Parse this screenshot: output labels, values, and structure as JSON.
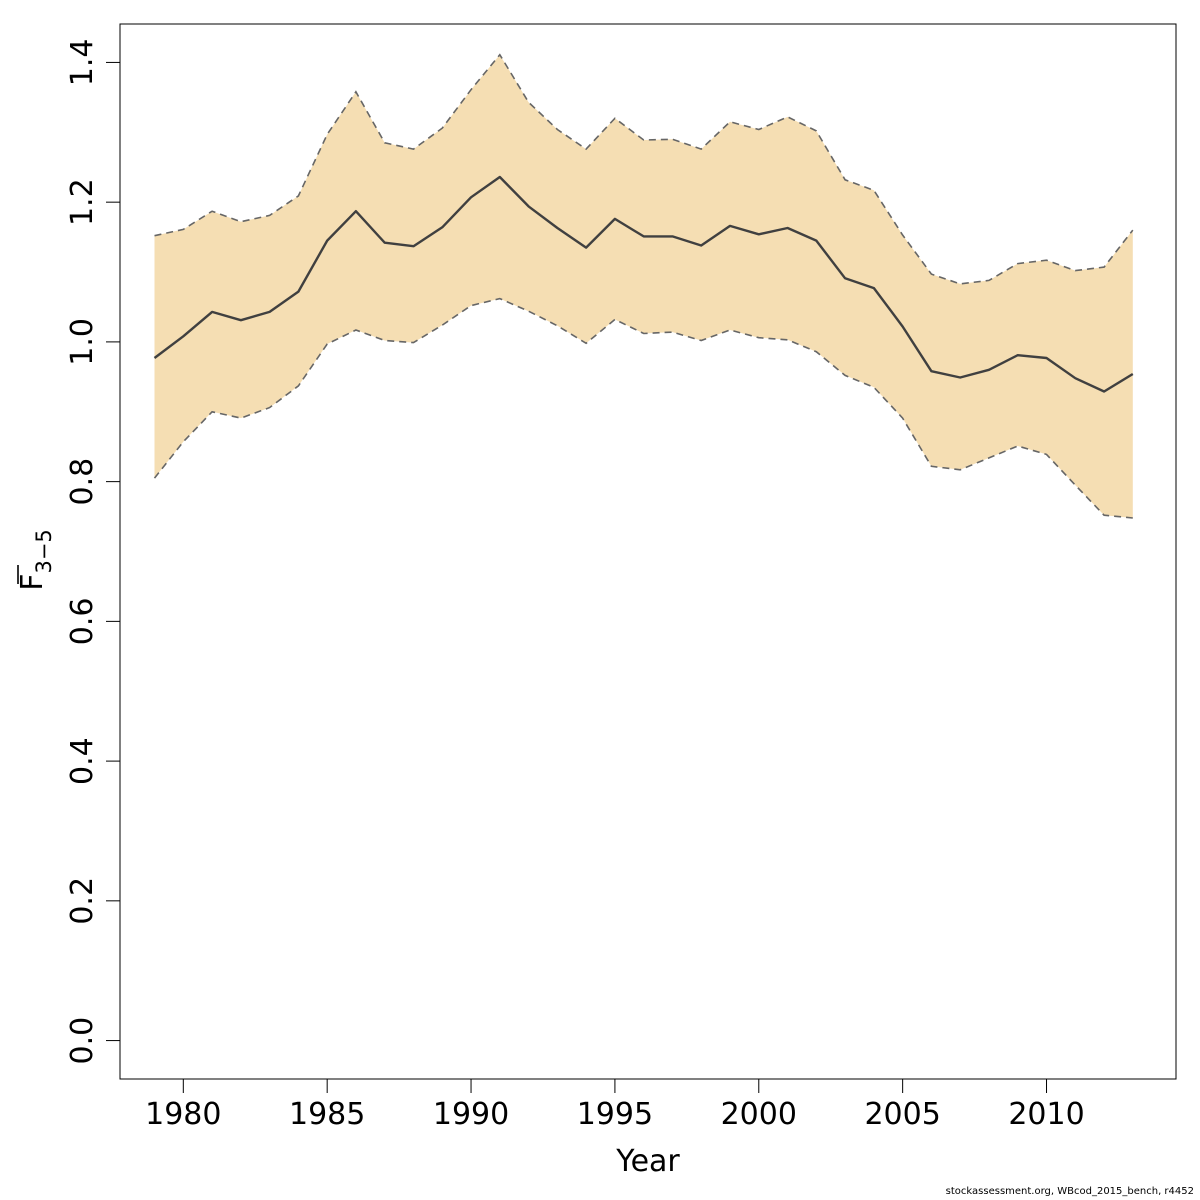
{
  "chart_data": {
    "type": "area",
    "xlabel": "Year",
    "ylabel_main": "F",
    "ylabel_sub": "3−5",
    "xlim": [
      1977.8,
      2014.5
    ],
    "ylim": [
      -0.055,
      1.455
    ],
    "xticks": [
      1980,
      1985,
      1990,
      1995,
      2000,
      2005,
      2010
    ],
    "yticks": [
      0.0,
      0.2,
      0.4,
      0.6,
      0.8,
      1.0,
      1.2,
      1.4
    ],
    "ytick_labels": [
      "0.0",
      "0.2",
      "0.4",
      "0.6",
      "0.8",
      "1.0",
      "1.2",
      "1.4"
    ],
    "band_color": "#F5DEB3",
    "line_color": "#404040",
    "grid": false,
    "x": [
      1979,
      1980,
      1981,
      1982,
      1983,
      1984,
      1985,
      1986,
      1987,
      1988,
      1989,
      1990,
      1991,
      1992,
      1993,
      1994,
      1995,
      1996,
      1997,
      1998,
      1999,
      2000,
      2001,
      2002,
      2003,
      2004,
      2005,
      2006,
      2007,
      2008,
      2009,
      2010,
      2011,
      2012,
      2013
    ],
    "series": [
      {
        "role": "estimate",
        "values": [
          0.977,
          1.008,
          1.043,
          1.031,
          1.043,
          1.072,
          1.145,
          1.187,
          1.142,
          1.137,
          1.164,
          1.207,
          1.236,
          1.194,
          1.163,
          1.135,
          1.176,
          1.151,
          1.151,
          1.138,
          1.166,
          1.154,
          1.163,
          1.145,
          1.091,
          1.077,
          1.022,
          0.958,
          0.949,
          0.96,
          0.981,
          0.977,
          0.948,
          0.929,
          0.954
        ]
      },
      {
        "role": "upper",
        "values": [
          1.152,
          1.161,
          1.187,
          1.172,
          1.181,
          1.209,
          1.297,
          1.358,
          1.285,
          1.276,
          1.306,
          1.361,
          1.411,
          1.343,
          1.304,
          1.276,
          1.32,
          1.289,
          1.29,
          1.276,
          1.315,
          1.304,
          1.322,
          1.302,
          1.232,
          1.217,
          1.153,
          1.097,
          1.083,
          1.088,
          1.112,
          1.117,
          1.102,
          1.107,
          1.16
        ]
      },
      {
        "role": "lower",
        "values": [
          0.805,
          0.857,
          0.9,
          0.891,
          0.906,
          0.937,
          0.997,
          1.017,
          1.002,
          0.999,
          1.024,
          1.052,
          1.062,
          1.044,
          1.023,
          0.998,
          1.032,
          1.012,
          1.014,
          1.002,
          1.017,
          1.006,
          1.003,
          0.986,
          0.952,
          0.935,
          0.891,
          0.822,
          0.817,
          0.834,
          0.851,
          0.839,
          0.795,
          0.752,
          0.748
        ]
      }
    ]
  },
  "footer": {
    "note": "stockassessment.org, WBcod_2015_bench, r4452"
  }
}
